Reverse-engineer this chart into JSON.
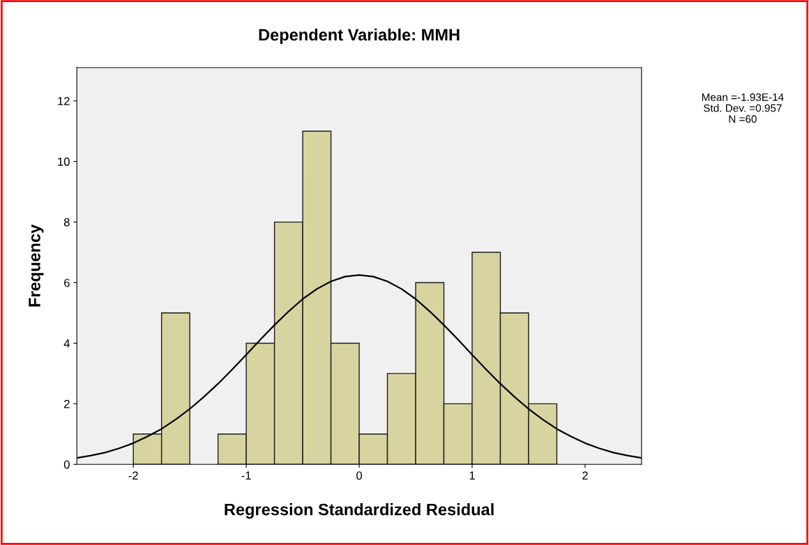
{
  "chart_data": {
    "type": "histogram",
    "title": "Dependent Variable: MMH",
    "xlabel": "Regression Standardized Residual",
    "ylabel": "Frequency",
    "bins": [
      -2.0,
      -1.75,
      -1.5,
      -1.25,
      -1.0,
      -0.75,
      -0.5,
      -0.25,
      0.0,
      0.25,
      0.5,
      0.75,
      1.0,
      1.25,
      1.5,
      1.75
    ],
    "values": [
      1,
      5,
      0,
      1,
      4,
      8,
      11,
      4,
      1,
      3,
      6,
      2,
      7,
      5,
      2
    ],
    "color": "#d8d4a0",
    "series": [
      {
        "type": "line",
        "color": "#000000",
        "x": [
          -2.5,
          -2.375,
          -2.25,
          -2.125,
          -2.0,
          -1.875,
          -1.75,
          -1.625,
          -1.5,
          -1.375,
          -1.25,
          -1.125,
          -1.0,
          -0.875,
          -0.75,
          -0.625,
          -0.5,
          -0.375,
          -0.25,
          -0.125,
          0.0,
          0.125,
          0.25,
          0.375,
          0.5,
          0.625,
          0.75,
          0.875,
          1.0,
          1.125,
          1.25,
          1.375,
          1.5,
          1.625,
          1.75,
          1.875,
          2.0,
          2.125,
          2.25,
          2.375,
          2.5
        ],
        "values": [
          0.21,
          0.29,
          0.39,
          0.53,
          0.7,
          0.92,
          1.17,
          1.48,
          1.83,
          2.23,
          2.66,
          3.13,
          3.62,
          4.12,
          4.6,
          5.05,
          5.46,
          5.79,
          6.04,
          6.2,
          6.25,
          6.2,
          6.04,
          5.79,
          5.46,
          5.05,
          4.6,
          4.12,
          3.62,
          3.13,
          2.66,
          2.23,
          1.83,
          1.48,
          1.17,
          0.92,
          0.7,
          0.53,
          0.39,
          0.29,
          0.21
        ]
      }
    ],
    "xlim": [
      -2.5,
      2.5
    ],
    "xticks": [
      -2,
      -1,
      0,
      1,
      2
    ],
    "ylim": [
      0,
      13.1
    ],
    "yticks": [
      0,
      2,
      4,
      6,
      8,
      10,
      12
    ],
    "grid": false,
    "annotations": [
      "Mean =-1.93E-14",
      "Std. Dev. =0.957",
      "N =60"
    ]
  }
}
